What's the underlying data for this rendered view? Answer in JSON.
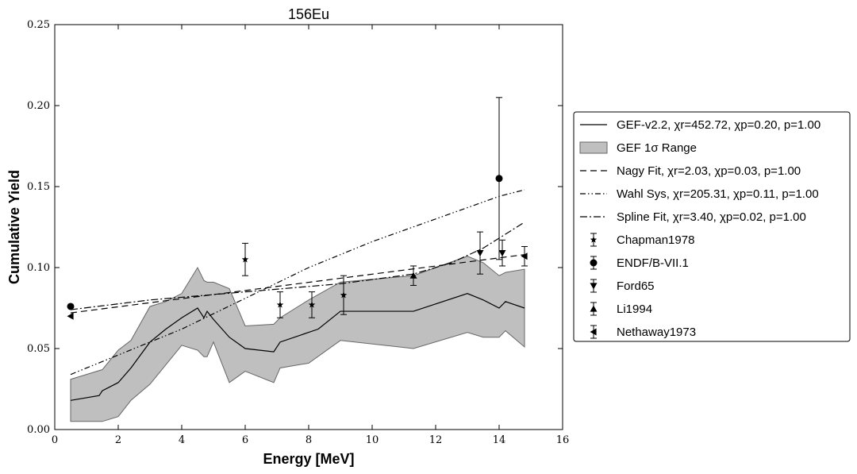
{
  "chart_data": {
    "type": "line",
    "title": "156Eu",
    "xlabel": "Energy [MeV]",
    "ylabel": "Cumulative Yield",
    "xlim": [
      0,
      16
    ],
    "ylim": [
      0,
      0.25
    ],
    "xticks": [
      0,
      2,
      4,
      6,
      8,
      10,
      12,
      14,
      16
    ],
    "xtick_labels": [
      "0",
      "2",
      "4",
      "6",
      "8",
      "10",
      "12",
      "14",
      "16"
    ],
    "yticks": [
      0,
      0.05,
      0.1,
      0.15,
      0.2,
      0.25
    ],
    "ytick_labels": [
      "0.00",
      "0.05",
      "0.10",
      "0.15",
      "0.20",
      "0.25"
    ],
    "legend_position": "right, outside plot",
    "band": {
      "name": "GEF 1σ Range",
      "color": "#bfbfbf",
      "edge_color": "#666666",
      "x": [
        0.5,
        1.5,
        2.0,
        2.4,
        3.0,
        3.5,
        4.0,
        4.5,
        4.7,
        4.8,
        5.0,
        5.5,
        6.0,
        6.9,
        7.1,
        8.0,
        9.0,
        11.3,
        13.0,
        13.5,
        14.0,
        14.2,
        14.8
      ],
      "upper": [
        0.031,
        0.037,
        0.049,
        0.055,
        0.076,
        0.079,
        0.084,
        0.1,
        0.092,
        0.091,
        0.091,
        0.087,
        0.064,
        0.065,
        0.069,
        0.08,
        0.091,
        0.095,
        0.107,
        0.103,
        0.095,
        0.097,
        0.099
      ],
      "lower": [
        0.005,
        0.005,
        0.008,
        0.018,
        0.028,
        0.04,
        0.052,
        0.049,
        0.045,
        0.045,
        0.054,
        0.029,
        0.036,
        0.029,
        0.038,
        0.041,
        0.055,
        0.05,
        0.06,
        0.057,
        0.057,
        0.061,
        0.051
      ]
    },
    "series": [
      {
        "name": "GEF-v2.2, χr=452.72, χp=0.20, p=1.00",
        "style": "solid",
        "x": [
          0.5,
          1.4,
          1.5,
          2.0,
          2.4,
          3.0,
          3.5,
          4.0,
          4.5,
          4.7,
          4.8,
          5.0,
          5.5,
          6.0,
          6.9,
          7.1,
          8.0,
          8.3,
          9.0,
          11.3,
          13.0,
          13.5,
          14.0,
          14.2,
          14.8
        ],
        "y": [
          0.018,
          0.021,
          0.024,
          0.029,
          0.038,
          0.054,
          0.062,
          0.069,
          0.075,
          0.069,
          0.073,
          0.068,
          0.057,
          0.05,
          0.048,
          0.054,
          0.06,
          0.062,
          0.073,
          0.073,
          0.084,
          0.08,
          0.075,
          0.079,
          0.075
        ]
      },
      {
        "name": "Nagy Fit, χr=2.03, χp=0.03, p=1.00",
        "style": "dashed",
        "x": [
          0.5,
          14.8
        ],
        "y": [
          0.072,
          0.108
        ]
      },
      {
        "name": "Wahl Sys, χr=205.31, χp=0.11, p=1.00",
        "style": "dash-dot-dot",
        "x": [
          0.5,
          2.0,
          4.0,
          6.0,
          8.0,
          10.0,
          12.0,
          14.0,
          14.8
        ],
        "y": [
          0.034,
          0.046,
          0.062,
          0.081,
          0.1,
          0.116,
          0.13,
          0.144,
          0.148
        ]
      },
      {
        "name": "Spline Fit, χr=3.40, χp=0.02, p=1.00",
        "style": "dash-dot",
        "x": [
          0.5,
          3.0,
          6.0,
          9.0,
          11.3,
          12.5,
          13.5,
          14.8
        ],
        "y": [
          0.074,
          0.08,
          0.085,
          0.09,
          0.096,
          0.103,
          0.112,
          0.128
        ]
      }
    ],
    "points": [
      {
        "name": "Chapman1978",
        "marker": "star",
        "x": [
          6.0,
          7.1,
          8.1,
          9.1
        ],
        "y": [
          0.105,
          0.077,
          0.077,
          0.083
        ],
        "err": [
          0.01,
          0.008,
          0.008,
          0.012
        ]
      },
      {
        "name": "ENDF/B-VII.1",
        "marker": "circle",
        "x": [
          0.5,
          14.0
        ],
        "y": [
          0.076,
          0.155
        ],
        "err": [
          0,
          0.05
        ]
      },
      {
        "name": "Ford65",
        "marker": "triangle-down",
        "x": [
          13.4,
          14.1
        ],
        "y": [
          0.109,
          0.109
        ],
        "err": [
          0.013,
          0.008
        ]
      },
      {
        "name": "Li1994",
        "marker": "triangle-up",
        "x": [
          11.3
        ],
        "y": [
          0.095
        ],
        "err": [
          0.006
        ]
      },
      {
        "name": "Nethaway1973",
        "marker": "triangle-left",
        "x": [
          0.5,
          14.8
        ],
        "y": [
          0.07,
          0.107
        ],
        "err": [
          0,
          0.006
        ]
      }
    ]
  }
}
